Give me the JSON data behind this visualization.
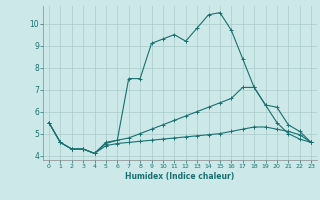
{
  "xlabel": "Humidex (Indice chaleur)",
  "bg_color": "#cce8e8",
  "line_color": "#1a7070",
  "grid_color": "#aacccc",
  "xlim": [
    -0.5,
    23.5
  ],
  "ylim": [
    3.8,
    10.8
  ],
  "xticks": [
    0,
    1,
    2,
    3,
    4,
    5,
    6,
    7,
    8,
    9,
    10,
    11,
    12,
    13,
    14,
    15,
    16,
    17,
    18,
    19,
    20,
    21,
    22,
    23
  ],
  "yticks": [
    4,
    5,
    6,
    7,
    8,
    9,
    10
  ],
  "lines": [
    {
      "x": [
        0,
        1,
        2,
        3,
        4,
        5,
        6,
        7,
        8,
        9,
        10,
        11,
        12,
        13,
        14,
        15,
        16,
        17,
        18,
        19,
        20,
        21,
        22,
        23
      ],
      "y": [
        5.5,
        4.6,
        4.3,
        4.3,
        4.1,
        4.6,
        4.7,
        7.5,
        7.5,
        9.1,
        9.3,
        9.5,
        9.2,
        9.8,
        10.4,
        10.5,
        9.7,
        8.4,
        7.1,
        6.3,
        6.2,
        5.4,
        5.1,
        4.6
      ]
    },
    {
      "x": [
        0,
        1,
        2,
        3,
        4,
        5,
        6,
        7,
        8,
        9,
        10,
        11,
        12,
        13,
        14,
        15,
        16,
        17,
        18,
        19,
        20,
        21,
        22,
        23
      ],
      "y": [
        5.5,
        4.6,
        4.3,
        4.3,
        4.1,
        4.55,
        4.7,
        4.8,
        5.0,
        5.2,
        5.4,
        5.6,
        5.8,
        6.0,
        6.2,
        6.4,
        6.6,
        7.1,
        7.1,
        6.3,
        5.5,
        5.0,
        4.75,
        4.6
      ]
    },
    {
      "x": [
        0,
        1,
        2,
        3,
        4,
        5,
        6,
        7,
        8,
        9,
        10,
        11,
        12,
        13,
        14,
        15,
        16,
        17,
        18,
        19,
        20,
        21,
        22,
        23
      ],
      "y": [
        5.5,
        4.6,
        4.3,
        4.3,
        4.1,
        4.45,
        4.55,
        4.6,
        4.65,
        4.7,
        4.75,
        4.8,
        4.85,
        4.9,
        4.95,
        5.0,
        5.1,
        5.2,
        5.3,
        5.3,
        5.2,
        5.1,
        4.95,
        4.6
      ]
    }
  ]
}
